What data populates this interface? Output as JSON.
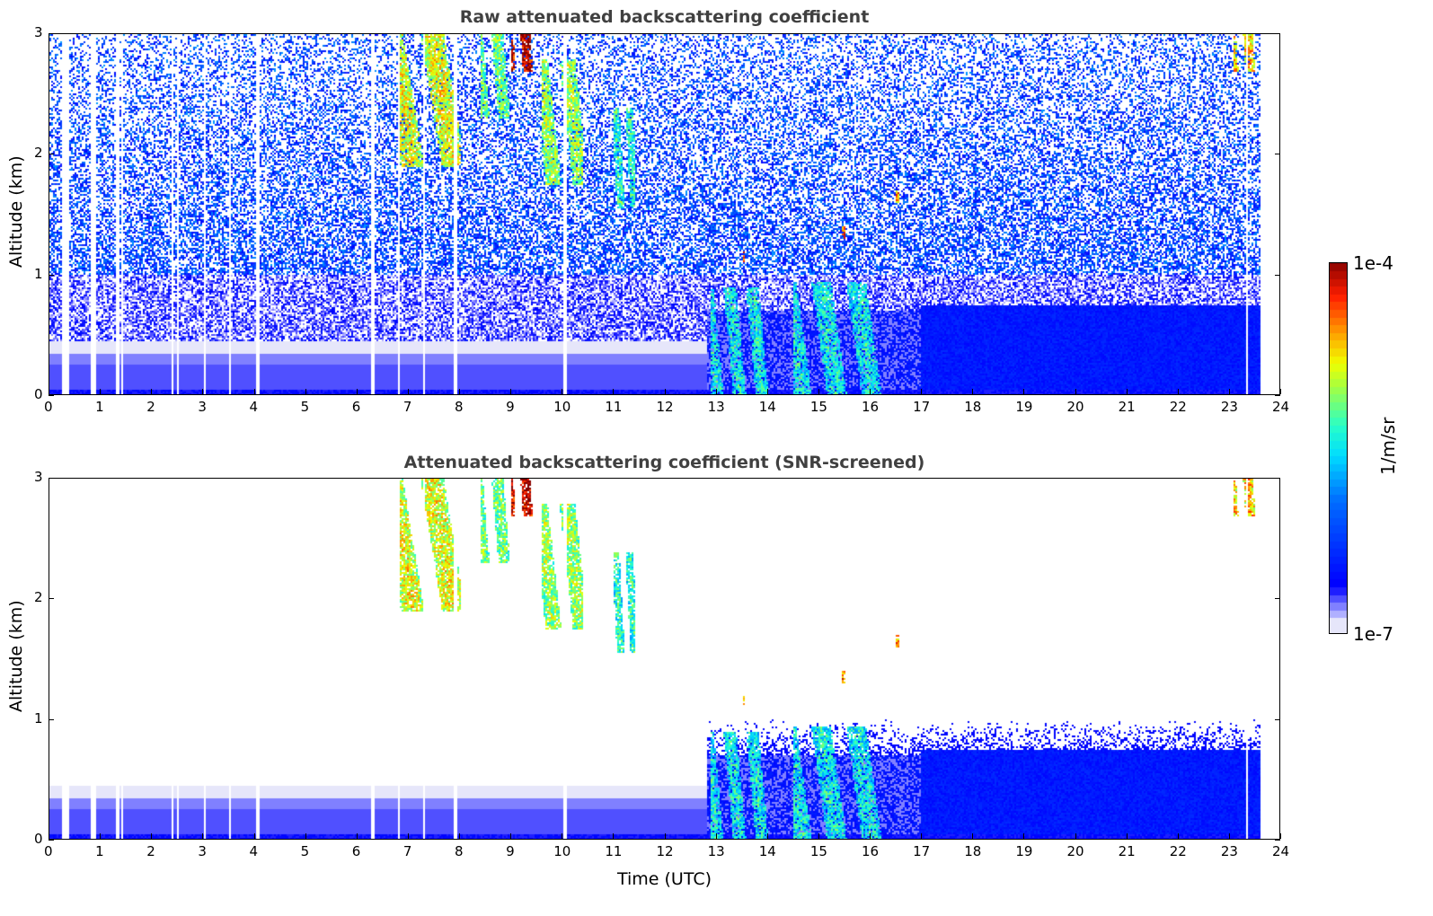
{
  "chart_data": [
    {
      "type": "heatmap",
      "title": "Raw attenuated backscattering coefficient",
      "xlabel": "",
      "ylabel": "Altitude (km)",
      "xlim": [
        0,
        24
      ],
      "ylim": [
        0,
        3
      ],
      "xticks": [
        0,
        1,
        2,
        3,
        4,
        5,
        6,
        7,
        8,
        9,
        10,
        11,
        12,
        13,
        14,
        15,
        16,
        17,
        18,
        19,
        20,
        21,
        22,
        23,
        24
      ],
      "yticks": [
        0,
        1,
        2,
        3
      ],
      "data_gaps_utc": [
        0.27,
        0.33,
        0.8,
        0.86,
        1.32,
        1.4,
        2.38,
        2.48,
        3.02,
        3.5,
        4.05,
        6.3,
        6.8,
        7.3,
        7.9,
        10.05,
        23.35
      ],
      "data_end_utc": 23.6
    },
    {
      "type": "heatmap",
      "title": "Attenuated backscattering coefficient (SNR-screened)",
      "xlabel": "Time (UTC)",
      "ylabel": "Altitude (km)",
      "xlim": [
        0,
        24
      ],
      "ylim": [
        0,
        3
      ],
      "xticks": [
        0,
        1,
        2,
        3,
        4,
        5,
        6,
        7,
        8,
        9,
        10,
        11,
        12,
        13,
        14,
        15,
        16,
        17,
        18,
        19,
        20,
        21,
        22,
        23,
        24
      ],
      "yticks": [
        0,
        1,
        2,
        3
      ]
    }
  ],
  "features": [
    {
      "name": "cirrus",
      "t": [
        6.8,
        8.0
      ],
      "z": [
        1.9,
        3.0
      ],
      "log10_value": -5.0
    },
    {
      "name": "cirrus",
      "t": [
        8.4,
        9.0
      ],
      "z": [
        2.3,
        3.0
      ],
      "log10_value": -5.3
    },
    {
      "name": "cirrus",
      "t": [
        9.0,
        9.5
      ],
      "z": [
        2.7,
        3.0
      ],
      "log10_value": -4.2
    },
    {
      "name": "cirrus",
      "t": [
        9.6,
        10.4
      ],
      "z": [
        1.75,
        2.8
      ],
      "log10_value": -5.2
    },
    {
      "name": "cirrus",
      "t": [
        11.0,
        11.4
      ],
      "z": [
        1.55,
        2.4
      ],
      "log10_value": -5.5
    },
    {
      "name": "cirrus",
      "t": [
        23.1,
        23.6
      ],
      "z": [
        2.7,
        3.0
      ],
      "log10_value": -4.8
    },
    {
      "name": "low cloud",
      "t": [
        12.9,
        14.0
      ],
      "z": [
        0.0,
        0.9
      ],
      "log10_value": -5.6
    },
    {
      "name": "low cloud",
      "t": [
        14.5,
        16.2
      ],
      "z": [
        0.0,
        0.95
      ],
      "log10_value": -5.6
    },
    {
      "name": "spot",
      "t": [
        13.5,
        13.6
      ],
      "z": [
        1.1,
        1.2
      ],
      "log10_value": -4.5
    },
    {
      "name": "spot",
      "t": [
        15.45,
        15.5
      ],
      "z": [
        1.3,
        1.4
      ],
      "log10_value": -4.5
    },
    {
      "name": "spot",
      "t": [
        16.5,
        16.55
      ],
      "z": [
        1.6,
        1.7
      ],
      "log10_value": -4.7
    }
  ],
  "colorbar": {
    "label": "1/m/sr",
    "max_label": "1e-4",
    "min_label": "1e-7",
    "range_log10": [
      -7,
      -4
    ]
  },
  "colors": {
    "low": "#e6e6fa",
    "mid": "#0000ff",
    "high": "#800000"
  }
}
